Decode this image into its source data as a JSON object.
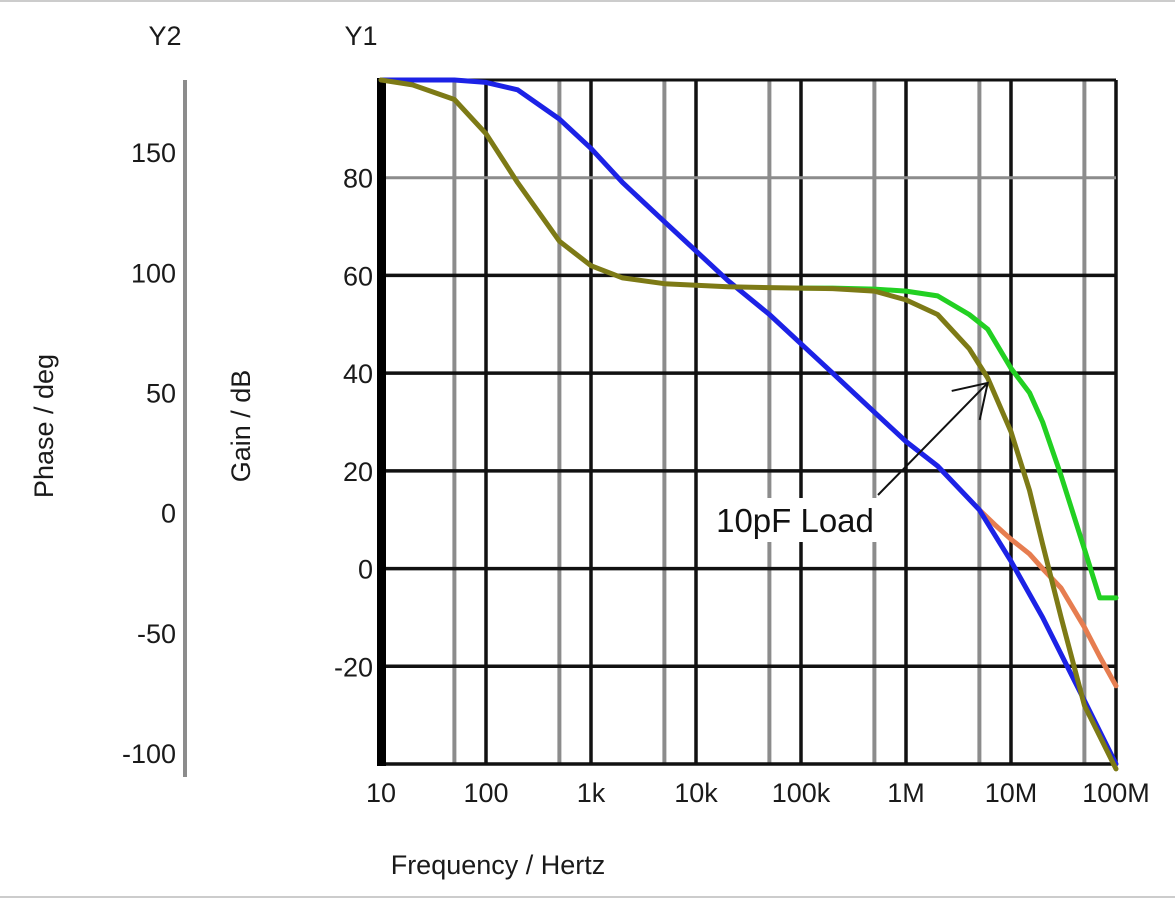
{
  "chart_data": {
    "type": "line",
    "xlabel": "Frequency / Hertz",
    "x_scale": "log",
    "xlim": [
      10,
      100000000
    ],
    "x_ticks": [
      {
        "value": 10,
        "label": "10"
      },
      {
        "value": 100,
        "label": "100"
      },
      {
        "value": 1000,
        "label": "1k"
      },
      {
        "value": 10000,
        "label": "10k"
      },
      {
        "value": 100000,
        "label": "100k"
      },
      {
        "value": 1000000,
        "label": "1M"
      },
      {
        "value": 10000000,
        "label": "10M"
      },
      {
        "value": 100000000,
        "label": "100M"
      }
    ],
    "y1": {
      "header": "Y1",
      "label": "Gain / dB",
      "ylim": [
        -40,
        100
      ],
      "ticks": [
        80,
        60,
        40,
        20,
        0,
        -20
      ]
    },
    "y2": {
      "header": "Y2",
      "label": "Phase / deg",
      "ylim": [
        -110,
        180
      ],
      "ticks": [
        150,
        100,
        50,
        0,
        -50,
        -100
      ]
    },
    "grid": true,
    "annotations": [
      {
        "text": "10pF Load",
        "x": 30000000,
        "y": 10,
        "arrow_to": [
          6000000,
          38
        ]
      }
    ],
    "colors": {
      "blue": "#1c22e6",
      "olive": "#7d7a16",
      "green": "#22d022",
      "orange": "#e67d50"
    },
    "series": [
      {
        "axis": "y1",
        "color": "blue",
        "x": [
          10,
          50,
          100,
          200,
          500,
          1000,
          2000,
          5000,
          10000,
          20000,
          50000,
          100000,
          200000,
          500000,
          1000000,
          2000000,
          5000000,
          10000000,
          20000000,
          50000000,
          100000000
        ],
        "y": [
          100,
          100,
          99.5,
          98,
          92,
          86,
          79,
          71,
          65,
          59,
          52,
          46,
          40,
          32,
          26,
          21,
          12,
          1.5,
          -10,
          -27,
          -40
        ]
      },
      {
        "axis": "y1",
        "color": "olive",
        "x": [
          10,
          20,
          50,
          100,
          200,
          500,
          1000,
          2000,
          5000,
          10000,
          20000,
          50000,
          100000,
          200000,
          500000,
          1000000,
          2000000,
          4000000,
          6000000,
          10000000,
          15000000,
          20000000,
          30000000,
          50000000,
          100000000
        ],
        "y": [
          100,
          99,
          96,
          89,
          79,
          67,
          62,
          59.5,
          58.3,
          58,
          57.7,
          57.5,
          57.4,
          57.3,
          56.8,
          55,
          52,
          45,
          39,
          28,
          16,
          5,
          -10,
          -28,
          -41
        ]
      },
      {
        "axis": "y1",
        "color": "green",
        "x": [
          100000,
          200000,
          500000,
          1000000,
          2000000,
          4000000,
          6000000,
          10000000,
          15000000,
          20000000,
          30000000,
          50000000,
          70000000,
          100000000
        ],
        "y": [
          57.4,
          57.4,
          57.2,
          56.8,
          55.8,
          52,
          49,
          41,
          36,
          30,
          19,
          4,
          -6,
          -6
        ]
      },
      {
        "axis": "y1",
        "color": "orange",
        "x": [
          5000000,
          7000000,
          10000000,
          15000000,
          20000000,
          30000000,
          50000000,
          70000000,
          100000000
        ],
        "y": [
          12,
          9,
          6,
          3,
          0,
          -4,
          -12,
          -18,
          -24
        ]
      }
    ]
  }
}
